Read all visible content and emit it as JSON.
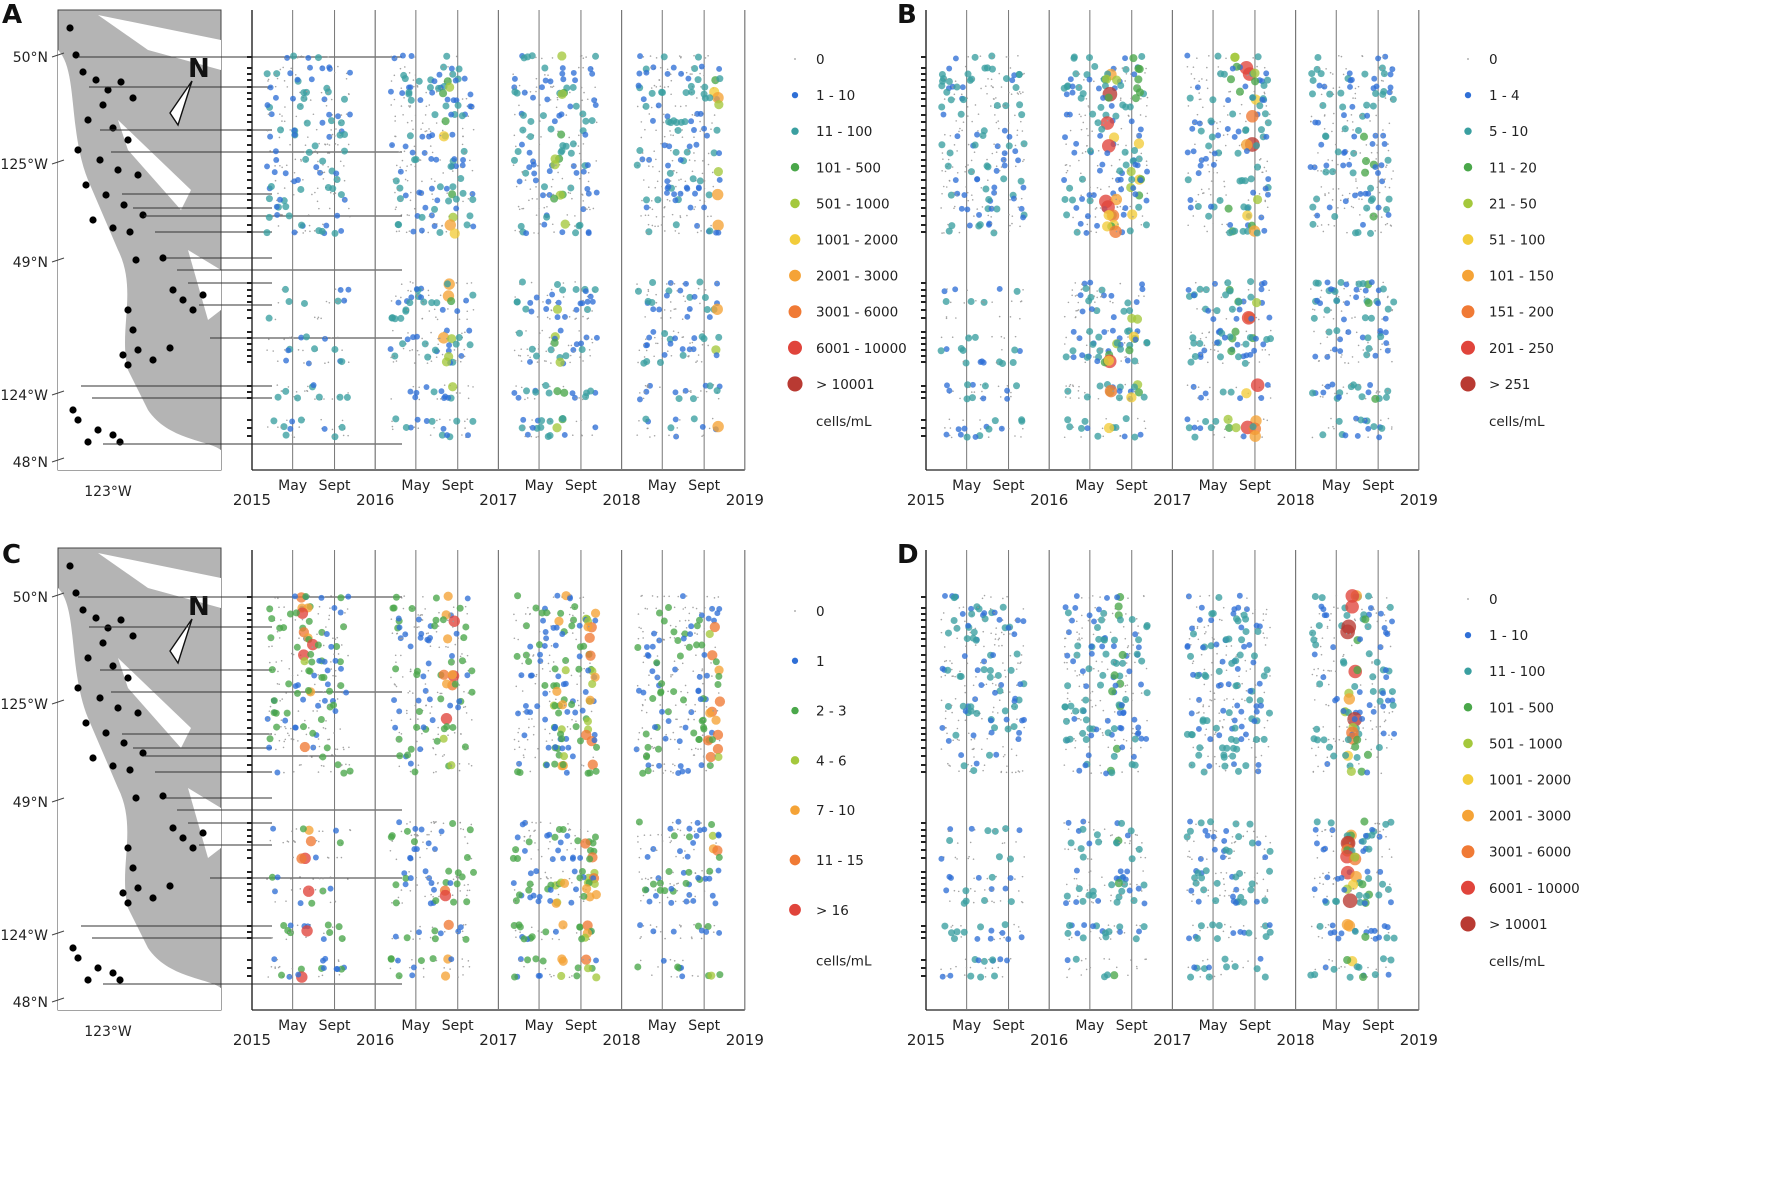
{
  "colors": {
    "zero": "#9a9a9a",
    "scale": [
      "#9a9a9a",
      "#2f6fd6",
      "#3a9fa0",
      "#4aa74a",
      "#a4c83c",
      "#f2cc3a",
      "#f5a336",
      "#f07a35",
      "#e0443b",
      "#b93a32"
    ],
    "map_land": "#b4b4b4",
    "map_water": "#ffffff",
    "station": "#000000",
    "axis": "#777777"
  },
  "map": {
    "lat_labels": [
      "50°N",
      "125°W",
      "49°N",
      "124°W",
      "48°N"
    ],
    "lon_label": "123°W",
    "north_label": "N"
  },
  "chart_data": [
    {
      "panel": "A",
      "type": "scatter",
      "years": [
        "2015",
        "2016",
        "2017",
        "2018",
        "2019"
      ],
      "months": [
        "May",
        "Sept"
      ],
      "legend": [
        "0",
        "1 - 10",
        "11 - 100",
        "101 - 500",
        "501 - 1000",
        "1001 - 2000",
        "2001 - 3000",
        "3001 - 6000",
        "6001 - 10000",
        "> 10001"
      ],
      "unit": "cells/mL",
      "has_map": true,
      "hotspots": [
        [
          2016.6,
          6,
          4
        ],
        [
          2017.5,
          4,
          3
        ],
        [
          2017.85,
          8,
          5
        ],
        [
          2018.8,
          6,
          3
        ]
      ]
    },
    {
      "panel": "B",
      "type": "scatter",
      "years": [
        "2015",
        "2016",
        "2017",
        "2018",
        "2019"
      ],
      "months": [
        "May",
        "Sept"
      ],
      "legend": [
        "0",
        "1 - 4",
        "5 - 10",
        "11 - 20",
        "21 - 50",
        "51 - 100",
        "101 - 150",
        "151 - 200",
        "201 - 250",
        "> 251"
      ],
      "unit": "cells/mL",
      "has_map": false,
      "hotspots": [
        [
          2016.5,
          9,
          9
        ],
        [
          2016.7,
          5,
          4
        ],
        [
          2017.5,
          4,
          4
        ],
        [
          2017.65,
          9,
          9
        ],
        [
          2018.6,
          3,
          3
        ]
      ]
    },
    {
      "panel": "C",
      "type": "scatter",
      "years": [
        "2015",
        "2016",
        "2017",
        "2018",
        "2019"
      ],
      "months": [
        "May",
        "Sept"
      ],
      "legend": [
        "0",
        "1",
        "2 - 3",
        "4 - 6",
        "7 - 10",
        "11 - 15",
        "> 16"
      ],
      "unit": "cells/mL",
      "has_map": true,
      "hotspots": [
        [
          2015.45,
          6,
          6
        ],
        [
          2016.6,
          6,
          5
        ],
        [
          2017.5,
          4,
          4
        ],
        [
          2017.75,
          5,
          4
        ],
        [
          2018.75,
          5,
          4
        ]
      ]
    },
    {
      "panel": "D",
      "type": "scatter",
      "years": [
        "2015",
        "2016",
        "2017",
        "2018",
        "2019"
      ],
      "months": [
        "May",
        "Sept"
      ],
      "legend": [
        "0",
        "1 - 10",
        "11 - 100",
        "101 - 500",
        "501 - 1000",
        "1001 - 2000",
        "2001 - 3000",
        "3001 - 6000",
        "6001 - 10000",
        "> 10001"
      ],
      "unit": "cells/mL",
      "has_map": false,
      "hotspots": [
        [
          2016.55,
          3,
          2
        ],
        [
          2017.55,
          2,
          2
        ],
        [
          2018.45,
          9,
          8
        ],
        [
          2018.55,
          3,
          3
        ]
      ]
    }
  ]
}
